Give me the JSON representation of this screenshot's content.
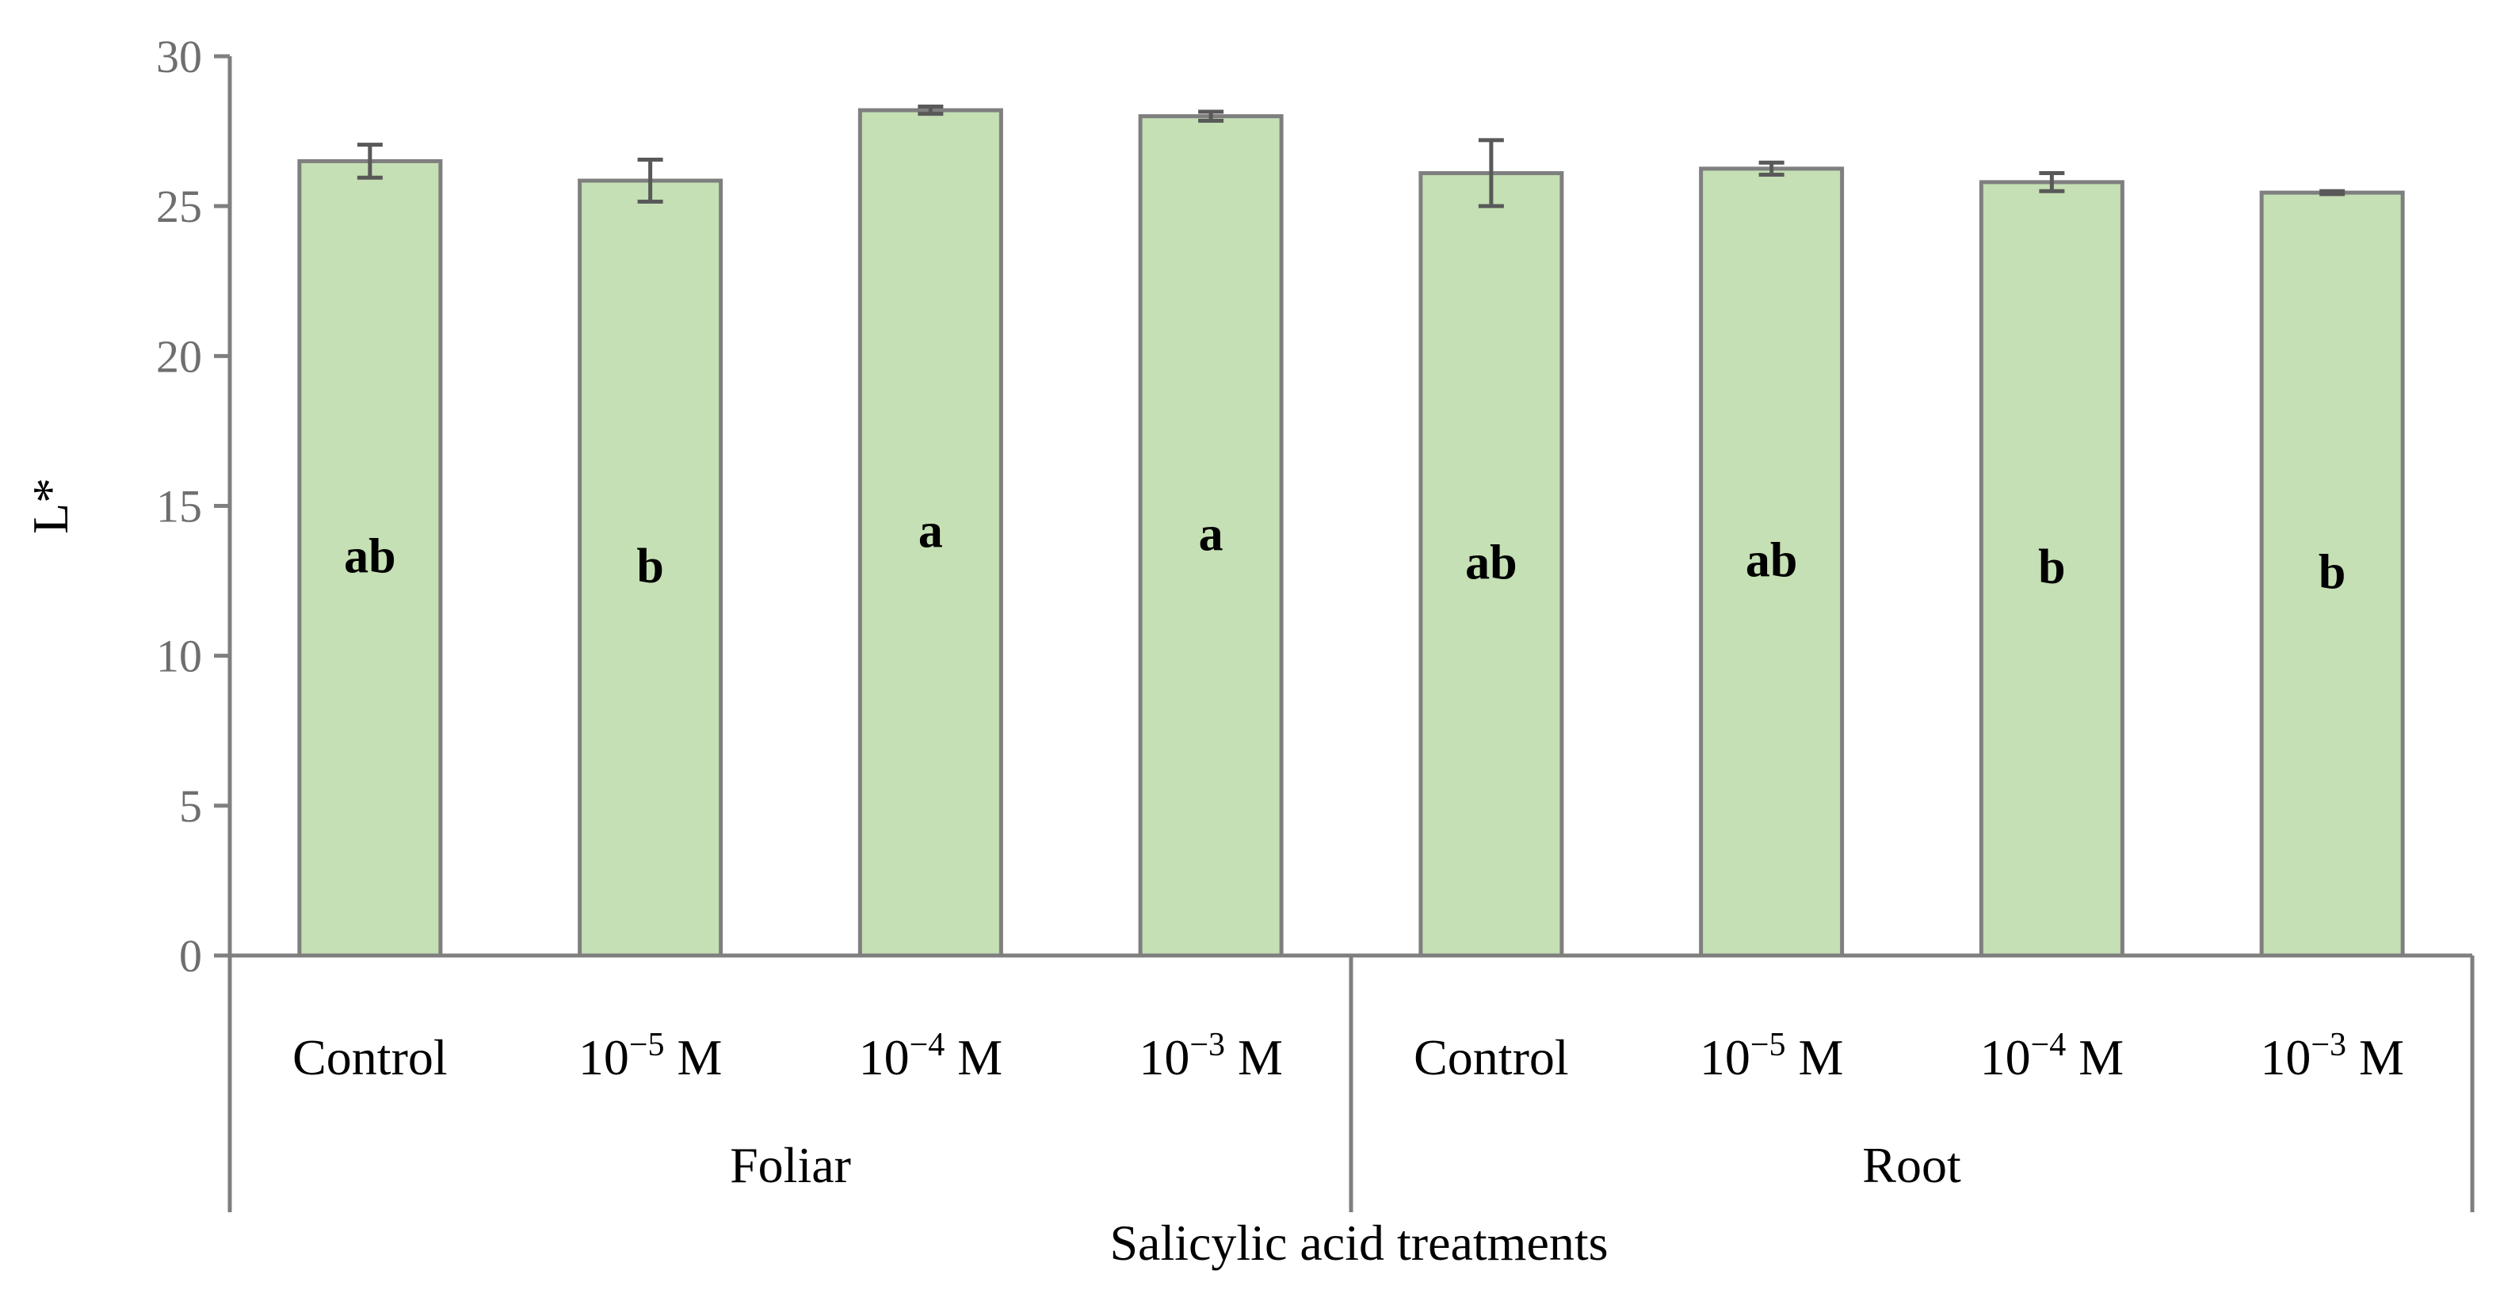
{
  "chart_data": {
    "type": "bar",
    "title": "",
    "ylabel": "L*",
    "xlabel": "Salicylic acid treatments",
    "ylim": [
      0,
      30
    ],
    "yticks": [
      0,
      5,
      10,
      15,
      20,
      25,
      30
    ],
    "grid": false,
    "colors": {
      "bar_fill": "#c5e0b4",
      "bar_stroke": "#7f7f7f",
      "axis": "#7f7f7f",
      "error_bar": "#595959"
    },
    "categories": [
      {
        "base": "Control",
        "exp": ""
      },
      {
        "base": "10",
        "exp": "−5",
        "unit": " M"
      },
      {
        "base": "10",
        "exp": "−4",
        "unit": " M"
      },
      {
        "base": "10",
        "exp": "−3",
        "unit": " M"
      },
      {
        "base": "Control",
        "exp": ""
      },
      {
        "base": "10",
        "exp": "−5",
        "unit": " M"
      },
      {
        "base": "10",
        "exp": "−4",
        "unit": " M"
      },
      {
        "base": "10",
        "exp": "−3",
        "unit": " M"
      }
    ],
    "groups": [
      {
        "name": "Foliar",
        "start": 0,
        "end": 3
      },
      {
        "name": "Root",
        "start": 4,
        "end": 7
      }
    ],
    "values": [
      26.5,
      25.85,
      28.2,
      28.0,
      26.1,
      26.25,
      25.8,
      25.45
    ],
    "errors": [
      0.55,
      0.7,
      0.12,
      0.15,
      1.1,
      0.2,
      0.3,
      0.05
    ],
    "significance": [
      "ab",
      "b",
      "a",
      "a",
      "ab",
      "ab",
      "b",
      "b"
    ]
  }
}
